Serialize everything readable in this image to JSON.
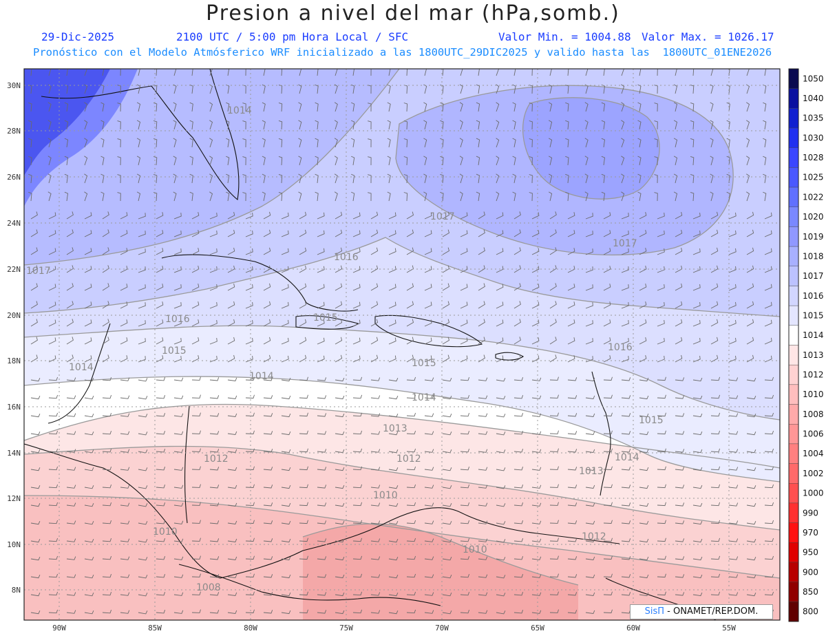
{
  "header": {
    "title": "Presion a nivel del mar (hPa,somb.)",
    "date": "29-Dic-2025",
    "time": "2100 UTC / 5:00 pm Hora Local / SFC",
    "min": "Valor Min. = 1004.88",
    "max": "Valor Max. = 1026.17",
    "subtitle": "Pronóstico con el Modelo Atmósferico WRF inicializado a las 1800UTC_29DIC2025 y valido hasta las  1800UTC_01ENE2026"
  },
  "axes": {
    "lat": [
      "30N",
      "28N",
      "26N",
      "24N",
      "22N",
      "20N",
      "18N",
      "16N",
      "14N",
      "12N",
      "10N",
      "8N"
    ],
    "lon": [
      "90W",
      "85W",
      "80W",
      "75W",
      "70W",
      "65W",
      "60W",
      "55W"
    ]
  },
  "colorbar": {
    "labels": [
      "1050",
      "1040",
      "1035",
      "1030",
      "1028",
      "1025",
      "1022",
      "1020",
      "1019",
      "1018",
      "1017",
      "1016",
      "1015",
      "1014",
      "1013",
      "1012",
      "1010",
      "1008",
      "1006",
      "1004",
      "1002",
      "1000",
      "990",
      "970",
      "950",
      "900",
      "850",
      "800"
    ],
    "colors": [
      "#0a0a50",
      "#0a10a0",
      "#1020d0",
      "#2030f0",
      "#3a46ff",
      "#4a58ff",
      "#6070ff",
      "#7a88ff",
      "#9098ff",
      "#a8b0ff",
      "#bcc2ff",
      "#d2d6ff",
      "#e4e6ff",
      "#ffffff",
      "#ffe6e6",
      "#ffd2d2",
      "#ffbebe",
      "#ffaaaa",
      "#ff9696",
      "#ff8080",
      "#ff6a6a",
      "#ff5050",
      "#ff3030",
      "#ff1010",
      "#e00000",
      "#b80000",
      "#900000",
      "#600000"
    ]
  },
  "contour_labels": [
    {
      "text": "1014"
    },
    {
      "text": "1017"
    },
    {
      "text": "1017"
    },
    {
      "text": "1016"
    },
    {
      "text": "1017"
    },
    {
      "text": "1016"
    },
    {
      "text": "1015"
    },
    {
      "text": "1015"
    },
    {
      "text": "1016"
    },
    {
      "text": "1014"
    },
    {
      "text": "1015"
    },
    {
      "text": "1014"
    },
    {
      "text": "1013"
    },
    {
      "text": "1012"
    },
    {
      "text": "1012"
    },
    {
      "text": "1015"
    },
    {
      "text": "1014"
    },
    {
      "text": "1013"
    },
    {
      "text": "1010"
    },
    {
      "text": "1010"
    },
    {
      "text": "1010"
    },
    {
      "text": "1012"
    },
    {
      "text": "1008"
    },
    {
      "text": "1014"
    }
  ],
  "credit": {
    "brand": "SisΠ",
    "org": " - ONAMET/REP.DOM."
  }
}
